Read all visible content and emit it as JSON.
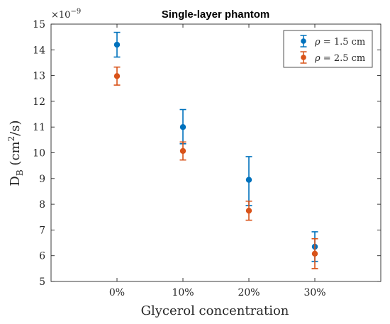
{
  "chart_data": {
    "type": "scatter",
    "title": "Single-layer phantom",
    "xlabel": "Glycerol concentration",
    "ylabel_main": "D",
    "ylabel_sub": "B",
    "ylabel_unit_open": " (cm",
    "ylabel_unit_sup": "2",
    "ylabel_unit_close": "/s)",
    "y_multiplier_base": "×10",
    "y_multiplier_exp": "−9",
    "categories": [
      "0%",
      "10%",
      "20%",
      "30%"
    ],
    "ylim": [
      5,
      15
    ],
    "yticks": [
      5,
      6,
      7,
      8,
      9,
      10,
      11,
      12,
      13,
      14,
      15
    ],
    "grid": false,
    "legend_position": "top-right",
    "series": [
      {
        "name_symbol": "ρ",
        "name_rest": " = 1.5 cm",
        "color": "#0072BD",
        "values": [
          14.2,
          11.0,
          8.95,
          6.35
        ],
        "err_low": [
          13.72,
          10.35,
          7.95,
          5.78
        ],
        "err_high": [
          14.68,
          11.68,
          9.85,
          6.93
        ]
      },
      {
        "name_symbol": "ρ",
        "name_rest": " = 2.5 cm",
        "color": "#D95319",
        "values": [
          12.98,
          10.07,
          7.75,
          6.08
        ],
        "err_low": [
          12.63,
          9.72,
          7.38,
          5.5
        ],
        "err_high": [
          13.33,
          10.42,
          8.12,
          6.66
        ]
      }
    ]
  }
}
